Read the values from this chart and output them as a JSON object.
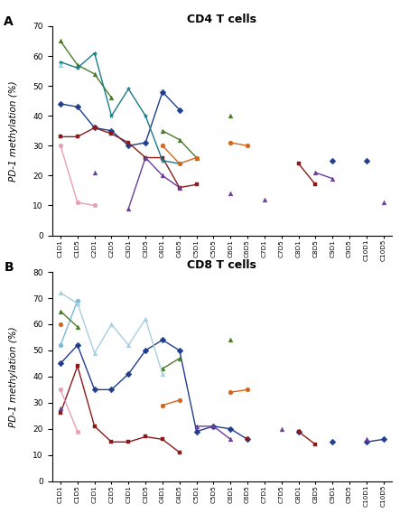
{
  "x_labels": [
    "C1D1",
    "C1D5",
    "C2D1",
    "C2D5",
    "C3D1",
    "C3D5",
    "C4D1",
    "C4D5",
    "C5D1",
    "C5D5",
    "C6D1",
    "C6D5",
    "C7D1",
    "C7D5",
    "C8D1",
    "C8D5",
    "C9D1",
    "C9D5",
    "C10D1",
    "C10D5"
  ],
  "cd4_series": {
    "23": [
      44,
      43,
      36,
      35,
      30,
      31,
      48,
      42,
      null,
      null,
      null,
      null,
      null,
      null,
      null,
      null,
      25,
      null,
      25,
      null
    ],
    "71": [
      33,
      33,
      36,
      34,
      31,
      26,
      26,
      16,
      17,
      null,
      null,
      null,
      null,
      null,
      24,
      17,
      null,
      null,
      null,
      null
    ],
    "91": [
      65,
      57,
      54,
      46,
      null,
      null,
      35,
      32,
      26,
      null,
      40,
      null,
      null,
      null,
      null,
      null,
      null,
      null,
      null,
      null
    ],
    "94": [
      null,
      null,
      21,
      null,
      9,
      26,
      20,
      16,
      null,
      null,
      14,
      null,
      12,
      null,
      null,
      21,
      19,
      null,
      null,
      11
    ],
    "123": [
      58,
      56,
      61,
      40,
      49,
      40,
      25,
      24,
      null,
      null,
      null,
      null,
      null,
      null,
      null,
      null,
      null,
      null,
      null,
      null
    ],
    "141": [
      null,
      null,
      null,
      null,
      null,
      null,
      30,
      24,
      26,
      null,
      31,
      30,
      null,
      null,
      null,
      null,
      null,
      null,
      null,
      null
    ],
    "147": [
      57,
      null,
      null,
      null,
      null,
      null,
      null,
      null,
      null,
      null,
      null,
      null,
      null,
      null,
      null,
      null,
      null,
      null,
      null,
      null
    ],
    "158": [
      30,
      11,
      10,
      null,
      null,
      null,
      null,
      null,
      null,
      null,
      null,
      null,
      null,
      null,
      null,
      null,
      null,
      null,
      null,
      null
    ]
  },
  "cd8_series": {
    "23": [
      45,
      52,
      35,
      35,
      41,
      50,
      54,
      50,
      19,
      21,
      20,
      16,
      null,
      null,
      19,
      null,
      15,
      null,
      15,
      16
    ],
    "60": [
      52,
      69,
      null,
      null,
      null,
      null,
      null,
      null,
      null,
      null,
      null,
      null,
      null,
      null,
      null,
      null,
      null,
      null,
      null,
      null
    ],
    "71": [
      26,
      44,
      21,
      15,
      15,
      17,
      16,
      11,
      null,
      null,
      null,
      16,
      null,
      null,
      19,
      14,
      null,
      null,
      null,
      null
    ],
    "91": [
      65,
      59,
      null,
      null,
      null,
      null,
      43,
      47,
      null,
      null,
      54,
      null,
      null,
      null,
      null,
      null,
      null,
      null,
      null,
      null
    ],
    "94": [
      28,
      null,
      null,
      null,
      null,
      null,
      null,
      null,
      21,
      21,
      16,
      null,
      null,
      20,
      null,
      null,
      null,
      null,
      16,
      null
    ],
    "141": [
      60,
      null,
      null,
      null,
      null,
      null,
      29,
      31,
      null,
      null,
      34,
      35,
      null,
      null,
      null,
      null,
      null,
      null,
      null,
      null
    ],
    "147": [
      72,
      68,
      49,
      60,
      52,
      62,
      41,
      null,
      null,
      null,
      null,
      null,
      null,
      null,
      null,
      null,
      null,
      null,
      null,
      null
    ],
    "158": [
      35,
      19,
      null,
      null,
      null,
      null,
      null,
      null,
      null,
      null,
      null,
      null,
      null,
      null,
      null,
      null,
      null,
      null,
      null,
      null
    ]
  },
  "cd4_colors": {
    "23": "#1f3d8c",
    "71": "#8b1a1a",
    "91": "#4a7a28",
    "94": "#6a3d9a",
    "123": "#1a7a8a",
    "141": "#d4661a",
    "147": "#a8cfe0",
    "158": "#e8a0b0"
  },
  "cd8_colors": {
    "23": "#1f3d8c",
    "60": "#7ab8d4",
    "71": "#8b1a1a",
    "91": "#4a7a28",
    "94": "#6a3d9a",
    "141": "#d4661a",
    "147": "#a8cfe0",
    "158": "#e8a0b0"
  },
  "cd4_markers": {
    "23": "D",
    "71": "s",
    "91": "^",
    "94": "^",
    "123": "*",
    "141": "o",
    "147": "^",
    "158": "o"
  },
  "cd8_markers": {
    "23": "D",
    "60": "o",
    "71": "s",
    "91": "^",
    "94": "^",
    "141": "o",
    "147": "^",
    "158": "o"
  }
}
